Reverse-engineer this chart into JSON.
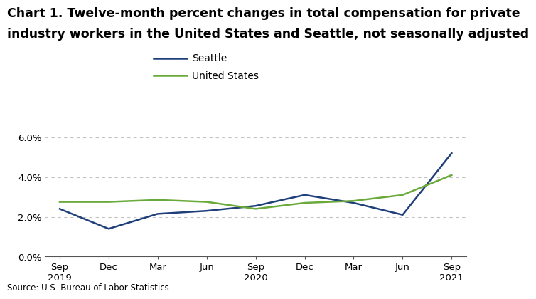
{
  "title_line1": "Chart 1. Twelve-month percent changes in total compensation for private",
  "title_line2": "industry workers in the United States and Seattle, not seasonally adjusted",
  "source": "Source: U.S. Bureau of Labor Statistics.",
  "x_labels": [
    "Sep\n2019",
    "Dec",
    "Mar",
    "Jun",
    "Sep\n2020",
    "Dec",
    "Mar",
    "Jun",
    "Sep\n2021"
  ],
  "seattle_values": [
    2.4,
    1.4,
    2.15,
    2.3,
    2.55,
    3.1,
    2.7,
    2.1,
    5.2
  ],
  "us_values": [
    2.75,
    2.75,
    2.85,
    2.75,
    2.4,
    2.7,
    2.8,
    3.1,
    4.1
  ],
  "seattle_color": "#1f3f7a",
  "us_color": "#6aaa3a",
  "ylim": [
    0.0,
    6.8
  ],
  "yticks": [
    0.0,
    2.0,
    4.0,
    6.0
  ],
  "ytick_labels": [
    "0.0%",
    "2.0%",
    "4.0%",
    "6.0%"
  ],
  "legend_labels": [
    "Seattle",
    "United States"
  ],
  "line_width": 1.8,
  "title_fontsize": 12.5,
  "legend_fontsize": 10,
  "axis_fontsize": 9.5,
  "source_fontsize": 8.5,
  "grid_color": "#aaaaaa",
  "grid_alpha": 0.7,
  "background_color": "#ffffff"
}
